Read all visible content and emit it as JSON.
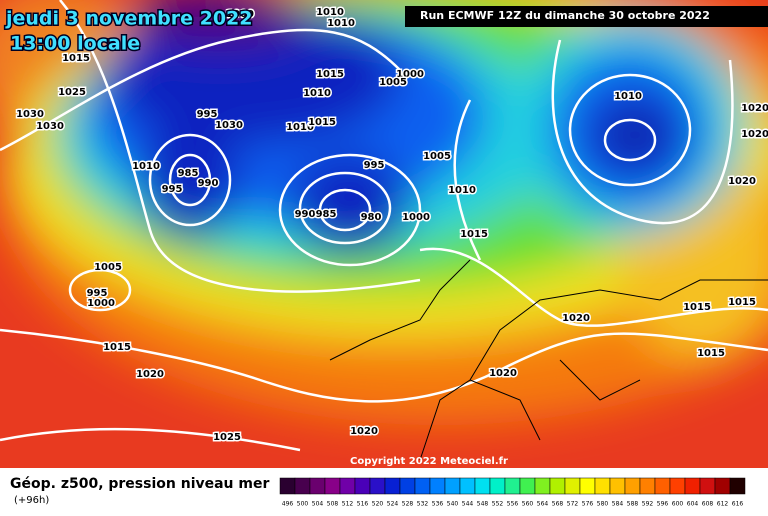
{
  "header": {
    "date": "jeudi 3 novembre 2022",
    "time": "13:00 locale",
    "run": "Run ECMWF 12Z du dimanche 30 octobre 2022"
  },
  "copyright": "Copyright 2022 Meteociel.fr",
  "legend": {
    "title": "Géop. z500, pression niveau mer",
    "lead": "(+96h)",
    "ticks": [
      496,
      500,
      504,
      508,
      512,
      516,
      520,
      524,
      528,
      532,
      536,
      540,
      544,
      548,
      552,
      556,
      560,
      564,
      568,
      572,
      576,
      580,
      584,
      588,
      592,
      596,
      600,
      604,
      608,
      612,
      616
    ],
    "colors": [
      "#2a0030",
      "#48004e",
      "#6a006e",
      "#880088",
      "#7000a8",
      "#4a00b8",
      "#2a10c8",
      "#0820d4",
      "#0040e4",
      "#0060f4",
      "#0080ff",
      "#00a0ff",
      "#00c0ff",
      "#00e0f0",
      "#00f0c8",
      "#20f090",
      "#40f050",
      "#80f020",
      "#b0f000",
      "#e0f000",
      "#ffff00",
      "#ffe000",
      "#ffc000",
      "#ffa000",
      "#ff8000",
      "#ff6000",
      "#ff4000",
      "#f02000",
      "#d01010",
      "#a00000",
      "#200000"
    ]
  },
  "isobar_labels": [
    1000,
    1010,
    1010,
    1015,
    1025,
    1030,
    1030,
    995,
    1030,
    1015,
    1000,
    1005,
    1010,
    1010,
    1015,
    1010,
    1020,
    1020,
    1010,
    985,
    995,
    990,
    995,
    1005,
    1010,
    1020,
    990,
    985,
    980,
    1000,
    1015,
    1005,
    995,
    1000,
    1015,
    1015,
    1020,
    1015,
    1015,
    1020,
    1020,
    1020,
    1025
  ]
}
